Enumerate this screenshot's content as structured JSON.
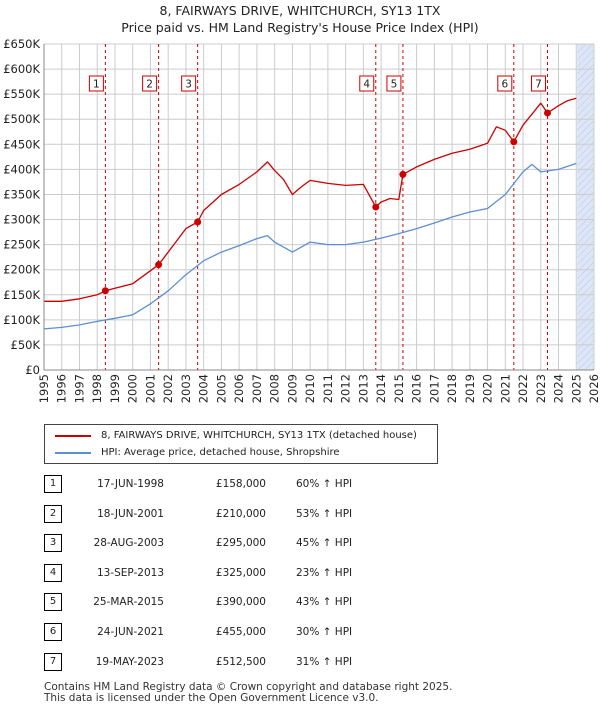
{
  "title": {
    "line1": "8, FAIRWAYS DRIVE, WHITCHURCH, SY13 1TX",
    "line2": "Price paid vs. HM Land Registry's House Price Index (HPI)"
  },
  "colors": {
    "price_line": "#cc0000",
    "hpi_line": "#5b8fd4",
    "band": "#dde6f6",
    "grid": "#cccccc",
    "marker_dash": "#cc0000"
  },
  "legend": {
    "price_label": "8, FAIRWAYS DRIVE, WHITCHURCH, SY13 1TX (detached house)",
    "hpi_label": "HPI: Average price, detached house, Shropshire"
  },
  "sales": [
    {
      "n": "1",
      "date": "17-JUN-1998",
      "price": "£158,000",
      "hpi": "60% ↑ HPI"
    },
    {
      "n": "2",
      "date": "18-JUN-2001",
      "price": "£210,000",
      "hpi": "53% ↑ HPI"
    },
    {
      "n": "3",
      "date": "28-AUG-2003",
      "price": "£295,000",
      "hpi": "45% ↑ HPI"
    },
    {
      "n": "4",
      "date": "13-SEP-2013",
      "price": "£325,000",
      "hpi": "23% ↑ HPI"
    },
    {
      "n": "5",
      "date": "25-MAR-2015",
      "price": "£390,000",
      "hpi": "43% ↑ HPI"
    },
    {
      "n": "6",
      "date": "24-JUN-2021",
      "price": "£455,000",
      "hpi": "30% ↑ HPI"
    },
    {
      "n": "7",
      "date": "19-MAY-2023",
      "price": "£512,500",
      "hpi": "31% ↑ HPI"
    }
  ],
  "footer": {
    "line1": "Contains HM Land Registry data © Crown copyright and database right 2025.",
    "line2": "This data is licensed under the Open Government Licence v3.0."
  },
  "chart_data": {
    "type": "line",
    "xlim": [
      1995,
      2026
    ],
    "ylim": [
      0,
      650000
    ],
    "grid": true,
    "legend_position": "below-chart",
    "x_ticks": [
      "1995",
      "1996",
      "1997",
      "1998",
      "1999",
      "2000",
      "2001",
      "2002",
      "2003",
      "2004",
      "2005",
      "2006",
      "2007",
      "2008",
      "2009",
      "2010",
      "2011",
      "2012",
      "2013",
      "2014",
      "2015",
      "2016",
      "2017",
      "2018",
      "2019",
      "2020",
      "2021",
      "2022",
      "2023",
      "2024",
      "2025",
      "2026"
    ],
    "y_ticks": [
      {
        "v": 0,
        "label": "£0"
      },
      {
        "v": 50000,
        "label": "£50K"
      },
      {
        "v": 100000,
        "label": "£100K"
      },
      {
        "v": 150000,
        "label": "£150K"
      },
      {
        "v": 200000,
        "label": "£200K"
      },
      {
        "v": 250000,
        "label": "£250K"
      },
      {
        "v": 300000,
        "label": "£300K"
      },
      {
        "v": 350000,
        "label": "£350K"
      },
      {
        "v": 400000,
        "label": "£400K"
      },
      {
        "v": 450000,
        "label": "£450K"
      },
      {
        "v": 500000,
        "label": "£500K"
      },
      {
        "v": 550000,
        "label": "£550K"
      },
      {
        "v": 600000,
        "label": "£600K"
      },
      {
        "v": 650000,
        "label": "£650K"
      }
    ],
    "sale_points": [
      {
        "label": "1",
        "x": 1998.46,
        "y": 158000
      },
      {
        "label": "2",
        "x": 2001.46,
        "y": 210000
      },
      {
        "label": "3",
        "x": 2003.66,
        "y": 295000
      },
      {
        "label": "4",
        "x": 2013.7,
        "y": 325000
      },
      {
        "label": "5",
        "x": 2015.23,
        "y": 390000
      },
      {
        "label": "6",
        "x": 2021.48,
        "y": 455000
      },
      {
        "label": "7",
        "x": 2023.38,
        "y": 512500
      }
    ],
    "series": [
      {
        "name": "8, FAIRWAYS DRIVE, WHITCHURCH, SY13 1TX (detached house)",
        "x": [
          1995,
          1996,
          1997,
          1998,
          1998.46,
          1999,
          2000,
          2001,
          2001.46,
          2002,
          2003,
          2003.66,
          2004,
          2005,
          2006,
          2007,
          2007.6,
          2008,
          2008.5,
          2009,
          2009.5,
          2010,
          2011,
          2012,
          2013,
          2013.7,
          2014,
          2014.5,
          2015,
          2015.23,
          2016,
          2017,
          2018,
          2019,
          2020,
          2020.5,
          2021,
          2021.48,
          2022,
          2022.5,
          2023,
          2023.38,
          2024,
          2024.5,
          2025
        ],
        "y": [
          137000,
          137000,
          142000,
          150000,
          158000,
          163000,
          172000,
          198000,
          210000,
          235000,
          282000,
          295000,
          318000,
          350000,
          370000,
          395000,
          415000,
          398000,
          380000,
          350000,
          365000,
          378000,
          372000,
          368000,
          370000,
          325000,
          335000,
          342000,
          340000,
          390000,
          405000,
          420000,
          432000,
          440000,
          452000,
          485000,
          478000,
          455000,
          488000,
          510000,
          532000,
          512500,
          527000,
          537000,
          542000
        ]
      },
      {
        "name": "HPI: Average price, detached house, Shropshire",
        "x": [
          1995,
          1996,
          1997,
          1998,
          1999,
          2000,
          2001,
          2002,
          2003,
          2004,
          2005,
          2006,
          2007,
          2007.6,
          2008,
          2009,
          2009.5,
          2010,
          2011,
          2012,
          2013,
          2014,
          2015,
          2016,
          2017,
          2018,
          2019,
          2020,
          2021,
          2022,
          2022.5,
          2023,
          2024,
          2025
        ],
        "y": [
          82000,
          85000,
          90000,
          97000,
          103000,
          110000,
          132000,
          158000,
          190000,
          218000,
          235000,
          248000,
          262000,
          268000,
          255000,
          235000,
          245000,
          255000,
          250000,
          250000,
          255000,
          263000,
          272000,
          282000,
          293000,
          305000,
          315000,
          322000,
          350000,
          395000,
          410000,
          395000,
          400000,
          412000
        ]
      }
    ]
  }
}
